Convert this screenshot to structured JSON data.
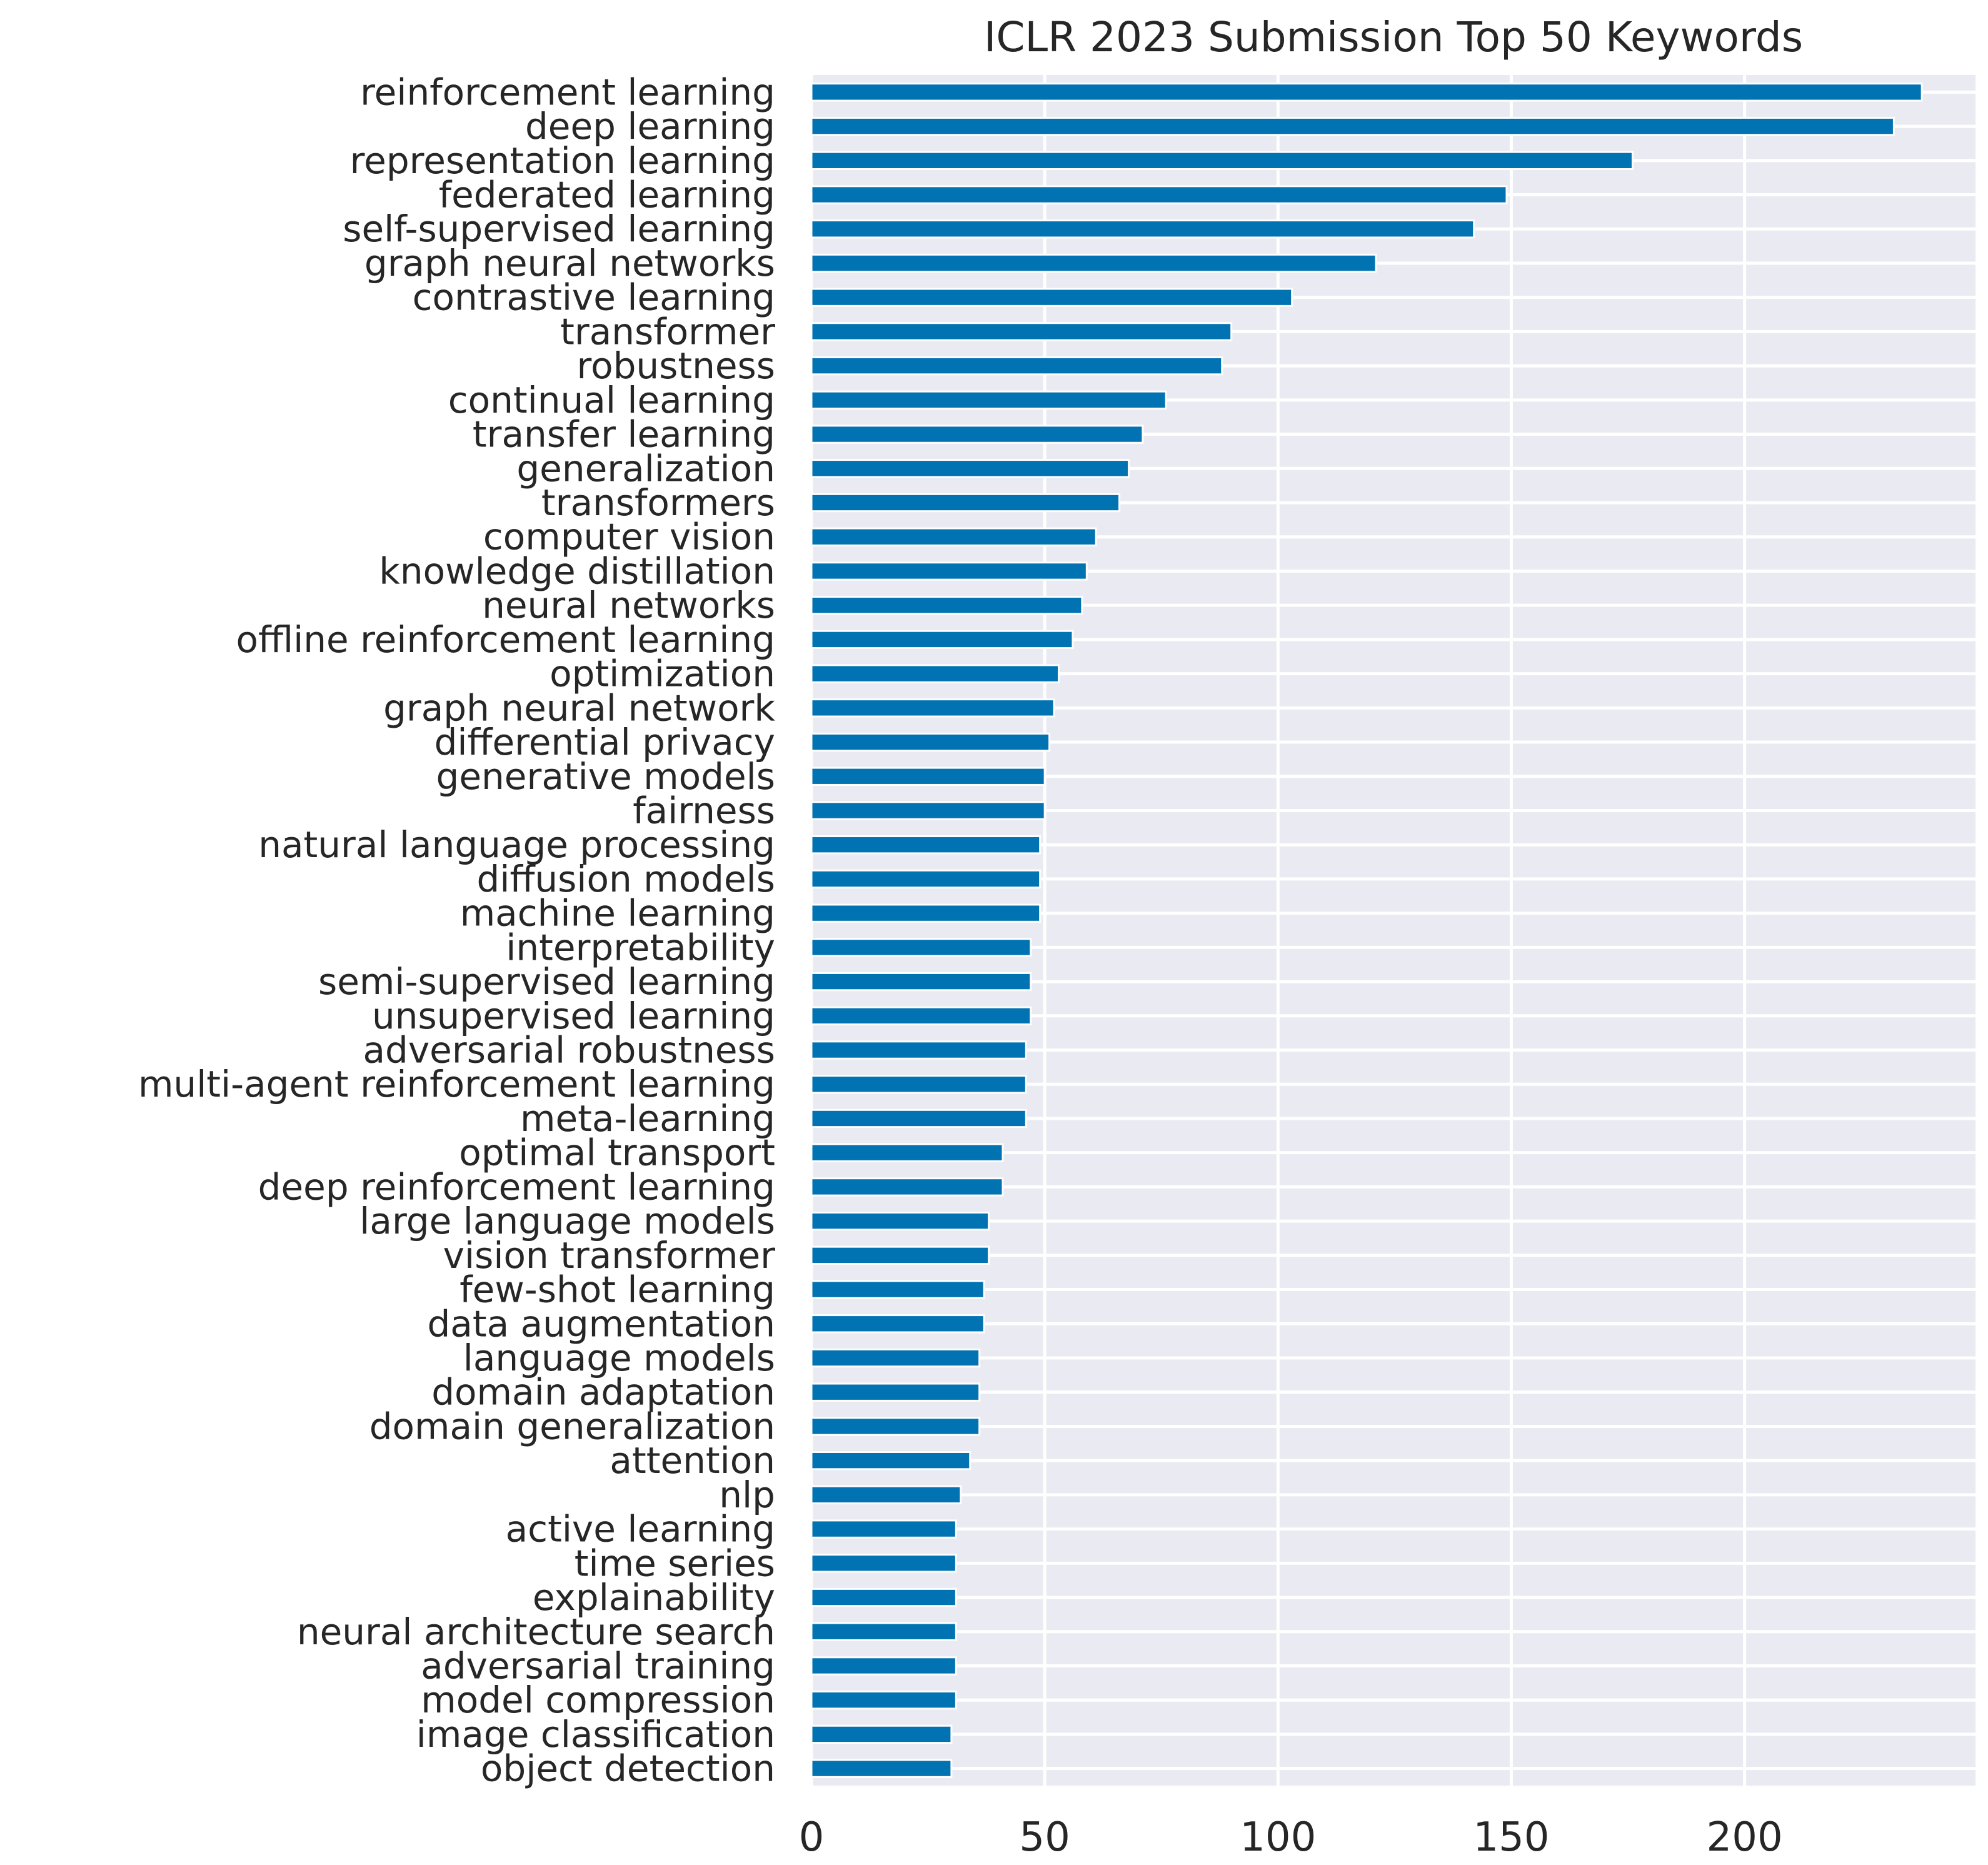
{
  "chart_data": {
    "type": "bar",
    "orientation": "horizontal",
    "title": "ICLR 2023 Submission Top 50 Keywords",
    "xlabel": "",
    "ylabel": "",
    "xlim": [
      0,
      249.5
    ],
    "xticks": [
      0,
      50,
      100,
      150,
      200
    ],
    "grid": true,
    "bar_color": "#0173b2",
    "background_color": "#eaeaf2",
    "grid_color": "#ffffff",
    "categories": [
      "reinforcement learning",
      "deep learning",
      "representation learning",
      "federated learning",
      "self-supervised learning",
      "graph neural networks",
      "contrastive learning",
      "transformer",
      "robustness",
      "continual learning",
      "transfer learning",
      "generalization",
      "transformers",
      "computer vision",
      "knowledge distillation",
      "neural networks",
      "offline reinforcement learning",
      "optimization",
      "graph neural network",
      "differential privacy",
      "generative models",
      "fairness",
      "natural language processing",
      "diffusion models",
      "machine learning",
      "interpretability",
      "semi-supervised learning",
      "unsupervised learning",
      "adversarial robustness",
      "multi-agent reinforcement learning",
      "meta-learning",
      "optimal transport",
      "deep reinforcement learning",
      "large language models",
      "vision transformer",
      "few-shot learning",
      "data augmentation",
      "language models",
      "domain adaptation",
      "domain generalization",
      "attention",
      "nlp",
      "active learning",
      "time series",
      "explainability",
      "neural architecture search",
      "adversarial training",
      "model compression",
      "image classification",
      "object detection"
    ],
    "values": [
      238,
      232,
      176,
      149,
      142,
      121,
      103,
      90,
      88,
      76,
      71,
      68,
      66,
      61,
      59,
      58,
      56,
      53,
      52,
      51,
      50,
      50,
      49,
      49,
      49,
      47,
      47,
      47,
      46,
      46,
      46,
      41,
      41,
      38,
      38,
      37,
      37,
      36,
      36,
      36,
      34,
      32,
      31,
      31,
      31,
      31,
      31,
      31,
      30,
      30
    ]
  }
}
